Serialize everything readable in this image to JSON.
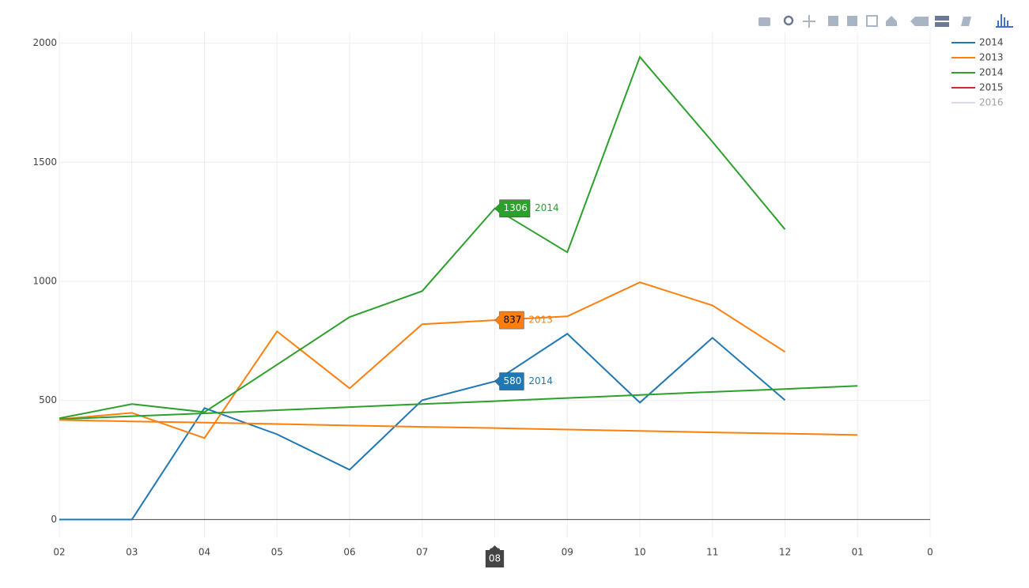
{
  "chart_data": {
    "type": "line",
    "categories": [
      "02",
      "03",
      "04",
      "05",
      "06",
      "07",
      "08",
      "09",
      "10",
      "11",
      "12",
      "01",
      "0"
    ],
    "ylim": [
      -75,
      2045
    ],
    "yticks": [
      0,
      500,
      1000,
      1500,
      2000
    ],
    "grid": true,
    "series": [
      {
        "name": "2014",
        "color": "#1f77b4",
        "values": [
          0,
          0,
          468,
          358,
          209,
          501,
          580,
          780,
          491,
          763,
          501,
          null,
          null
        ]
      },
      {
        "name": "2013",
        "color": "#ff7f0e",
        "values": [
          421,
          448,
          342,
          790,
          551,
          820,
          837,
          853,
          996,
          899,
          704,
          null,
          null
        ]
      },
      {
        "name": "2014",
        "color": "#2ca02c",
        "values": [
          425,
          485,
          451,
          650,
          850,
          959,
          1306,
          1122,
          1942,
          1586,
          1218,
          null,
          null
        ]
      },
      {
        "name": "2015",
        "color": "#d62728",
        "values": [
          null,
          null,
          null,
          null,
          null,
          null,
          null,
          null,
          null,
          null,
          null,
          null,
          null
        ]
      },
      {
        "name": "2016",
        "color": "#c5b0d5",
        "visible": "legendonly",
        "values": [
          null,
          null,
          null,
          null,
          null,
          null,
          null,
          null,
          null,
          null,
          null,
          null,
          null
        ]
      },
      {
        "color": "#2ca02c",
        "showlegend": false,
        "values": [
          421,
          434,
          446,
          459,
          472,
          485,
          497,
          510,
          523,
          536,
          548,
          561,
          null
        ]
      },
      {
        "color": "#ff7f0e",
        "showlegend": false,
        "values": [
          418,
          412,
          407,
          401,
          395,
          389,
          384,
          378,
          372,
          366,
          361,
          355,
          null
        ]
      }
    ],
    "hover": {
      "index": 6,
      "series": [
        2,
        1,
        0
      ]
    }
  }
}
